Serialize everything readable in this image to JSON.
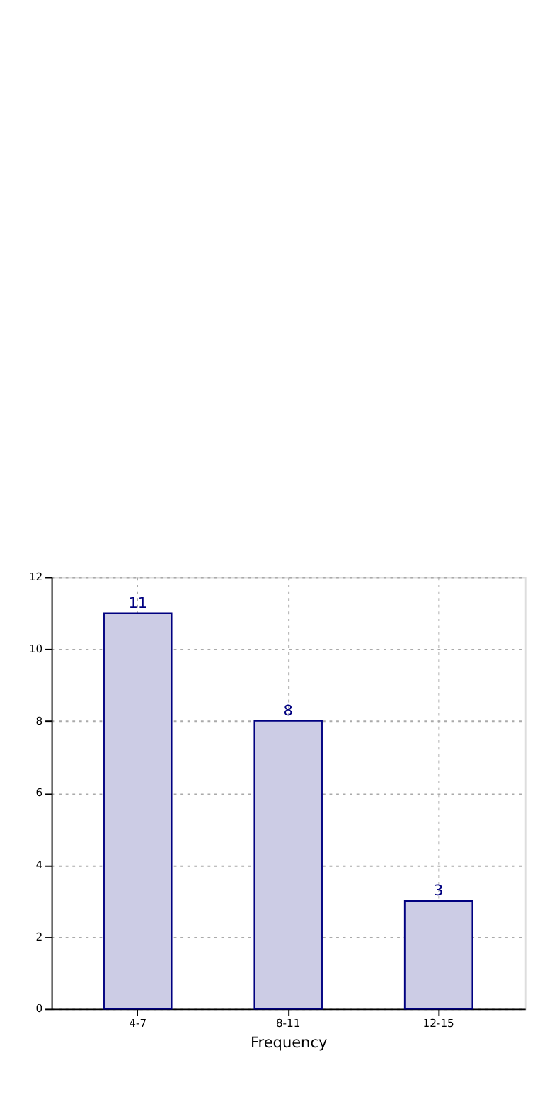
{
  "chart_data": {
    "type": "bar",
    "xlabel": "Frequency",
    "categories": [
      "4-7",
      "8-11",
      "12-15"
    ],
    "values": [
      11,
      8,
      3
    ],
    "color": "#cccce5",
    "ylim": [
      0,
      12
    ],
    "yticks": [
      0,
      2,
      4,
      6,
      8,
      10,
      12
    ],
    "grid": true,
    "data_labels": true
  }
}
